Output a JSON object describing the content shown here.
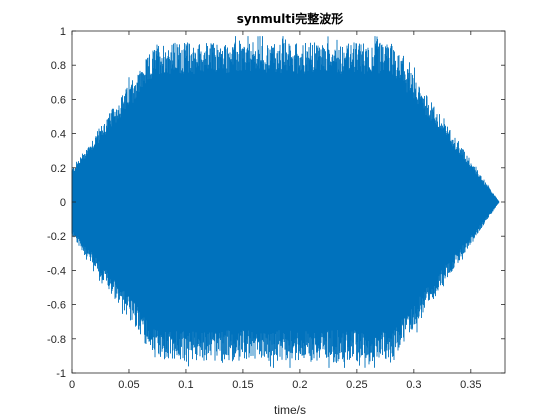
{
  "chart_data": {
    "type": "line",
    "title": "synmulti完整波形",
    "xlabel": "time/s",
    "ylabel": "",
    "xlim": [
      0,
      0.38
    ],
    "ylim": [
      -1,
      1
    ],
    "xticks": [
      0,
      0.05,
      0.1,
      0.15,
      0.2,
      0.25,
      0.3,
      0.35
    ],
    "xtick_labels": [
      "0",
      "0.05",
      "0.1",
      "0.15",
      "0.2",
      "0.25",
      "0.3",
      "0.35"
    ],
    "yticks": [
      -1,
      -0.8,
      -0.6,
      -0.4,
      -0.2,
      0,
      0.2,
      0.4,
      0.6,
      0.8,
      1
    ],
    "ytick_labels": [
      "-1",
      "-0.8",
      "-0.6",
      "-0.4",
      "-0.2",
      "0",
      "0.2",
      "0.4",
      "0.6",
      "0.8",
      "1"
    ],
    "grid": false,
    "line_color": "#0072BD",
    "envelope": {
      "description_points_x": [
        0,
        0.075,
        0.28,
        0.375
      ],
      "description_points_y": [
        0.18,
        0.85,
        0.85,
        0.0
      ]
    },
    "signal_duration": 0.375,
    "peak_amplitude": 0.97
  }
}
